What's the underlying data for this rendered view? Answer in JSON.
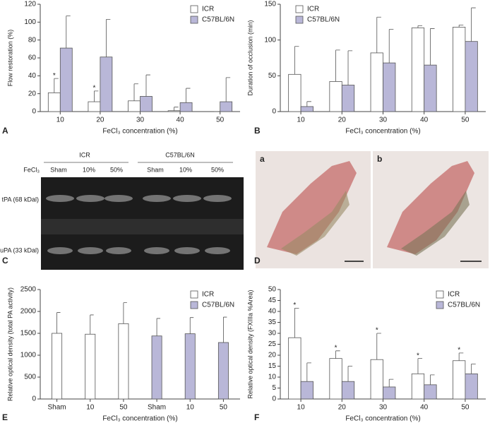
{
  "chart_data": [
    {
      "type": "bar",
      "panel": "A",
      "ylabel": "Flow restoration (%)",
      "xlabel": "FeCl₃ concentration (%)",
      "categories": [
        "10",
        "20",
        "30",
        "40",
        "50"
      ],
      "series": [
        {
          "name": "ICR",
          "color": "#ffffff",
          "values": [
            21,
            11,
            12,
            1,
            0
          ],
          "errors": [
            16,
            12,
            19,
            4,
            0
          ],
          "labels": [
            "*",
            "*",
            null,
            null,
            null
          ]
        },
        {
          "name": "C57BL/6N",
          "color": "#b9b7d8",
          "values": [
            71,
            61,
            17,
            10,
            11
          ],
          "errors": [
            36,
            42,
            24,
            16,
            27
          ]
        }
      ],
      "ylim": [
        0,
        120
      ],
      "yticks": [
        0,
        20,
        40,
        60,
        80,
        100,
        120
      ],
      "legend": "upper right"
    },
    {
      "type": "bar",
      "panel": "B",
      "ylabel": "Duration of occlusion (min)",
      "xlabel": "FeCl₃ concentration (%)",
      "categories": [
        "10",
        "20",
        "30",
        "40",
        "50"
      ],
      "series": [
        {
          "name": "ICR",
          "color": "#ffffff",
          "values": [
            52,
            42,
            82,
            117,
            118
          ],
          "errors": [
            39,
            44,
            50,
            3,
            3
          ]
        },
        {
          "name": "C57BL/6N",
          "color": "#b9b7d8",
          "values": [
            7,
            37,
            68,
            65,
            98
          ],
          "errors": [
            7,
            48,
            47,
            51,
            47
          ]
        }
      ],
      "ylim": [
        0,
        150
      ],
      "yticks": [
        0,
        50,
        100,
        150
      ],
      "legend": "upper left"
    },
    {
      "type": "bar",
      "panel": "E",
      "ylabel": "Relative optical density (total PA activity)",
      "xlabel": "FeCl₃ concentration (%)",
      "categories": [
        "Sham",
        "10",
        "50",
        "Sham",
        "10",
        "50"
      ],
      "series": [
        {
          "name": "ICR",
          "color": "#ffffff",
          "values": [
            1500,
            1480,
            1720,
            null,
            null,
            null
          ],
          "errors": [
            475,
            440,
            480,
            null,
            null,
            null
          ]
        },
        {
          "name": "C57BL/6N",
          "color": "#b9b7d8",
          "values": [
            null,
            null,
            null,
            1440,
            1490,
            1290
          ],
          "errors": [
            null,
            null,
            null,
            400,
            370,
            580
          ]
        }
      ],
      "ylim": [
        0,
        2500
      ],
      "yticks": [
        0,
        500,
        1000,
        1500,
        2000,
        2500
      ],
      "legend": "upper right"
    },
    {
      "type": "bar",
      "panel": "F",
      "ylabel": "Relative optical density (FXIIIa %Area)",
      "xlabel": "FeCl₃ concentration (%)",
      "categories": [
        "10",
        "20",
        "30",
        "40",
        "50"
      ],
      "series": [
        {
          "name": "ICR",
          "color": "#ffffff",
          "values": [
            28,
            18.5,
            18,
            11.5,
            17.5
          ],
          "errors": [
            13.5,
            3.5,
            12,
            7,
            3.5
          ],
          "labels": [
            "*",
            "*",
            "*",
            "*",
            "*"
          ]
        },
        {
          "name": "C57BL/6N",
          "color": "#b9b7d8",
          "values": [
            8,
            8,
            5.5,
            6.5,
            11.5
          ],
          "errors": [
            8.5,
            7,
            3.5,
            4.5,
            4.5
          ]
        }
      ],
      "ylim": [
        0,
        50
      ],
      "yticks": [
        0,
        5,
        10,
        15,
        20,
        25,
        30,
        35,
        40,
        45,
        50
      ],
      "legend": "upper right"
    }
  ],
  "gel": {
    "panel": "C",
    "groups": [
      "ICR",
      "C57BL/6N"
    ],
    "row_label": "FeCl₃",
    "lanes": [
      "Sham",
      "10%",
      "50%",
      "Sham",
      "10%",
      "50%"
    ],
    "bands": [
      "tPA (68 kDal)",
      "uPA (33 kDal)"
    ]
  },
  "histology": {
    "panel": "D",
    "images": [
      "a",
      "b"
    ]
  }
}
